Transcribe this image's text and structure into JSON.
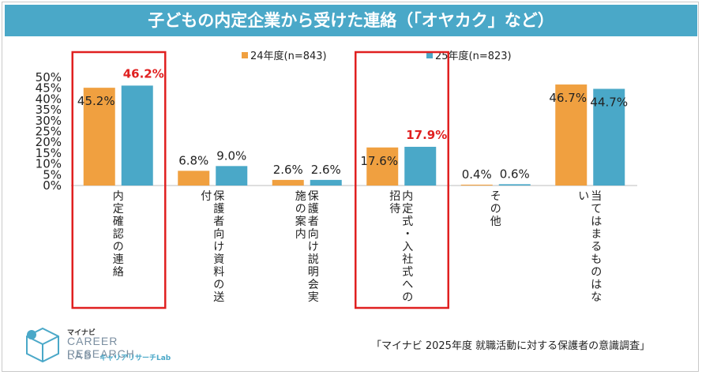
{
  "title": "子どもの内定企業から受けた連絡（「オヤカク」など）",
  "source": "「マイナビ 2025年度 就職活動に対する保護者の意識調査」",
  "logo": {
    "top": "マイナビ",
    "main": "CAREER RESEARCH",
    "lab": "LAB",
    "sub": "キャリアリサーチLab"
  },
  "colors": {
    "banner": "#4aa8c8",
    "series_2024": "#f0a040",
    "series_2025": "#4aa8c8",
    "highlight": "#e02020"
  },
  "chart_data": {
    "type": "bar",
    "categories": [
      "内定確認の連絡",
      "保護者向け資料の送付",
      "保護者向け説明会実施の案内",
      "内定式・入社式への招待",
      "その他",
      "当てはまるものはない"
    ],
    "series": [
      {
        "name": "24年度(n=843)",
        "values": [
          45.2,
          6.8,
          2.6,
          17.6,
          0.4,
          46.7
        ]
      },
      {
        "name": "25年度(n=823)",
        "values": [
          46.2,
          9.0,
          2.6,
          17.9,
          0.6,
          44.7
        ]
      }
    ],
    "ylim": [
      0,
      50
    ],
    "yticks": [
      "0%",
      "5%",
      "10%",
      "15%",
      "20%",
      "25%",
      "30%",
      "35%",
      "40%",
      "45%",
      "50%"
    ],
    "highlighted_categories": [
      "内定確認の連絡",
      "内定式・入社式への招待"
    ],
    "legend": "top"
  }
}
